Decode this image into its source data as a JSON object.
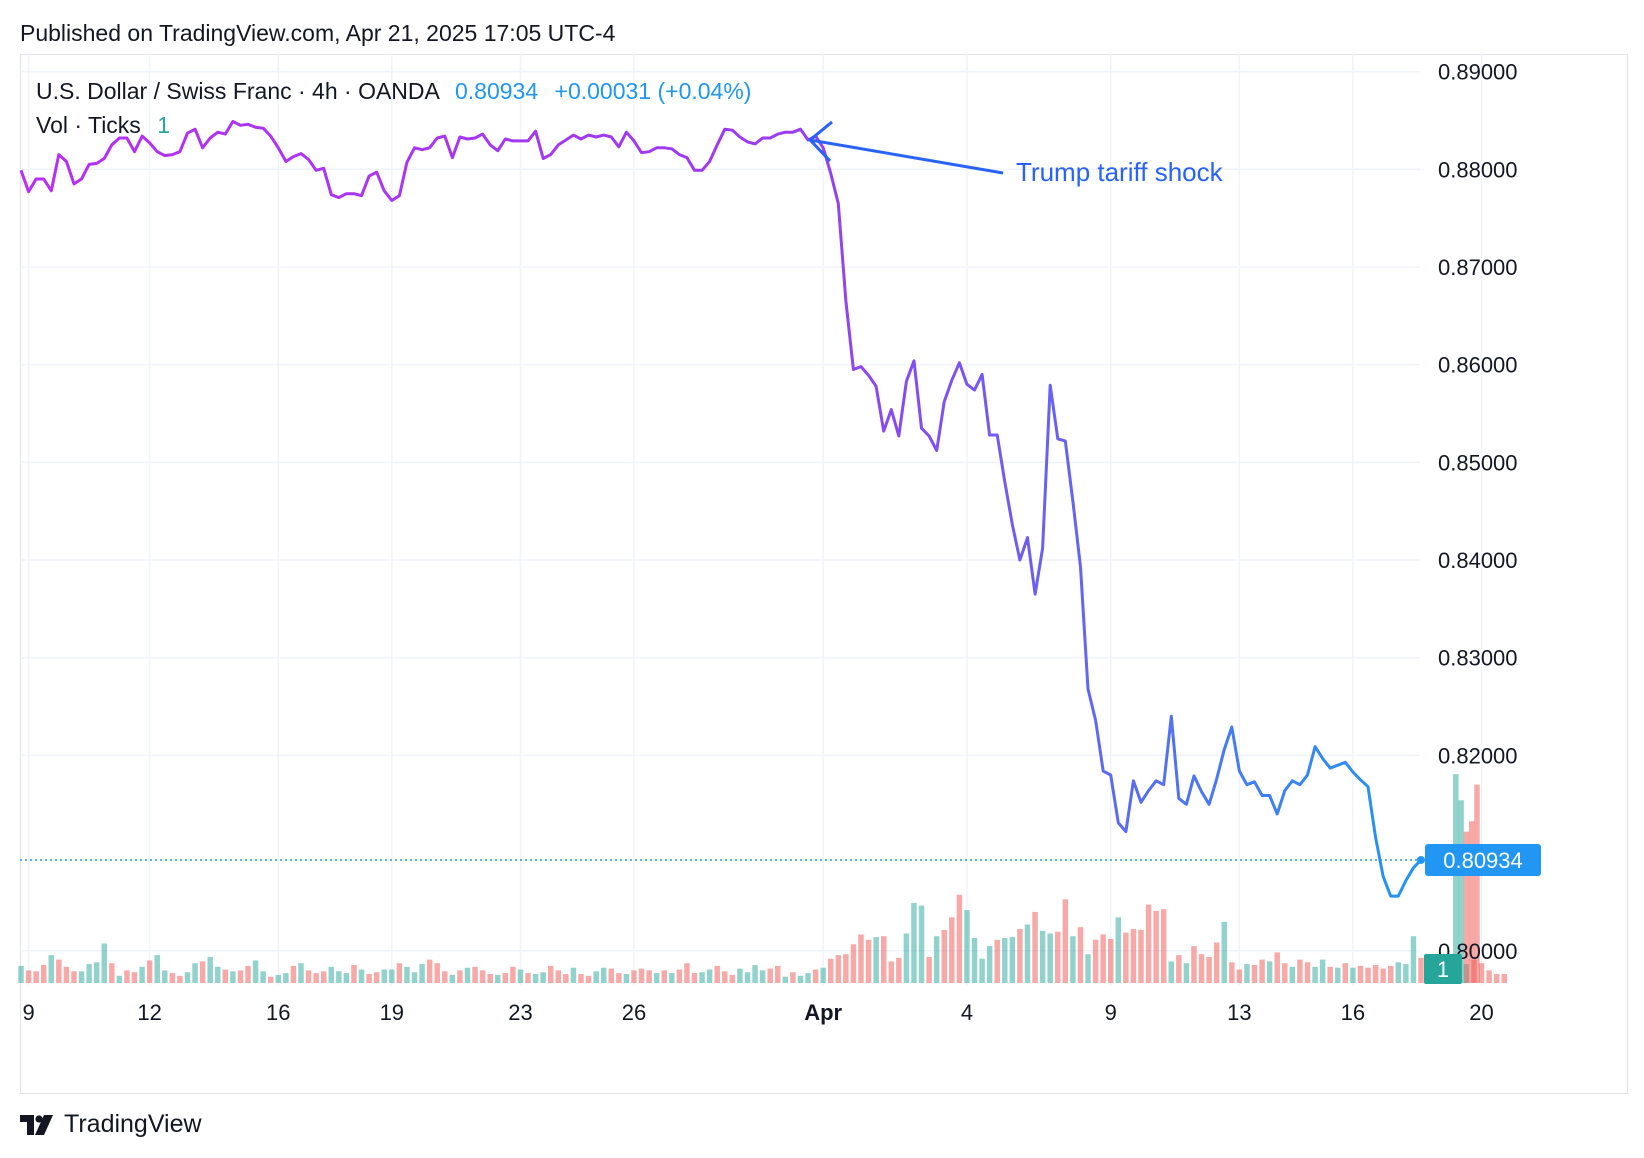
{
  "header": {
    "published": "Published on TradingView.com, Apr 21, 2025 17:05 UTC-4"
  },
  "legend": {
    "symbol": "U.S. Dollar / Swiss Franc · 4h · OANDA",
    "price": "0.80934",
    "change": "+0.00031 (+0.04%)",
    "volume_label": "Vol · Ticks",
    "volume_value": "1"
  },
  "footer": {
    "brand": "TradingView",
    "logo_icon": "tradingview-logo-icon"
  },
  "colors": {
    "line_start": "#b72ff5",
    "line_end": "#2196f3",
    "vol_up": "#26a69a",
    "vol_down": "#ef5350",
    "annotation": "#2962ff",
    "price_tag": "#2196f3"
  },
  "chart_data": {
    "type": "line",
    "title": "U.S. Dollar / Swiss Franc · 4h · OANDA",
    "ylim": [
      0.7965,
      0.8918
    ],
    "y_ticks": [
      "0.89000",
      "0.88000",
      "0.87000",
      "0.86000",
      "0.85000",
      "0.84000",
      "0.83000",
      "0.82000",
      "0.80000"
    ],
    "x_ticks": [
      {
        "label": "9",
        "idx": 1
      },
      {
        "label": "12",
        "idx": 17
      },
      {
        "label": "16",
        "idx": 34
      },
      {
        "label": "19",
        "idx": 49
      },
      {
        "label": "23",
        "idx": 66
      },
      {
        "label": "26",
        "idx": 81
      },
      {
        "label": "Apr",
        "idx": 106
      },
      {
        "label": "4",
        "idx": 125
      },
      {
        "label": "9",
        "idx": 144
      },
      {
        "label": "13",
        "idx": 161
      },
      {
        "label": "16",
        "idx": 176
      },
      {
        "label": "20",
        "idx": 193
      }
    ],
    "series": [
      {
        "values": [
          0.8799,
          0.8777,
          0.879,
          0.879,
          0.8778,
          0.8815,
          0.8808,
          0.8785,
          0.879,
          0.8805,
          0.8806,
          0.8811,
          0.8825,
          0.8832,
          0.8832,
          0.8818,
          0.8834,
          0.8827,
          0.8818,
          0.8814,
          0.8815,
          0.8818,
          0.8837,
          0.8841,
          0.8822,
          0.8832,
          0.8838,
          0.8836,
          0.8849,
          0.8845,
          0.8846,
          0.8843,
          0.8842,
          0.8834,
          0.8822,
          0.8808,
          0.8813,
          0.8816,
          0.881,
          0.8799,
          0.8801,
          0.8774,
          0.8771,
          0.8775,
          0.8775,
          0.8773,
          0.8793,
          0.8797,
          0.8778,
          0.8768,
          0.8773,
          0.8807,
          0.8822,
          0.882,
          0.8822,
          0.8832,
          0.8834,
          0.8812,
          0.8833,
          0.8831,
          0.8832,
          0.8836,
          0.8825,
          0.8819,
          0.8831,
          0.8829,
          0.8829,
          0.8829,
          0.8839,
          0.8811,
          0.8815,
          0.8825,
          0.883,
          0.8835,
          0.8831,
          0.8835,
          0.8833,
          0.8835,
          0.8833,
          0.8823,
          0.8838,
          0.8829,
          0.8817,
          0.8818,
          0.8822,
          0.8822,
          0.8821,
          0.8815,
          0.8812,
          0.8799,
          0.8799,
          0.8808,
          0.8825,
          0.8841,
          0.884,
          0.8833,
          0.8828,
          0.8826,
          0.8832,
          0.8832,
          0.8836,
          0.8838,
          0.8838,
          0.8841,
          0.883,
          0.8834,
          0.8822,
          0.8796,
          0.8765,
          0.8665,
          0.8595,
          0.8598,
          0.8589,
          0.8578,
          0.8532,
          0.8554,
          0.8527,
          0.8583,
          0.8604,
          0.8535,
          0.8527,
          0.8512,
          0.8562,
          0.8584,
          0.8602,
          0.858,
          0.8574,
          0.859,
          0.8528,
          0.8528,
          0.848,
          0.8436,
          0.84,
          0.8423,
          0.8365,
          0.8412,
          0.8579,
          0.8524,
          0.8522,
          0.846,
          0.8393,
          0.8268,
          0.8236,
          0.8184,
          0.818,
          0.8131,
          0.8122,
          0.8174,
          0.8152,
          0.8164,
          0.8174,
          0.817,
          0.824,
          0.8156,
          0.815,
          0.8179,
          0.8163,
          0.815,
          0.8176,
          0.8206,
          0.8229,
          0.8184,
          0.817,
          0.8173,
          0.8159,
          0.8159,
          0.814,
          0.8164,
          0.8174,
          0.817,
          0.818,
          0.8209,
          0.8197,
          0.8187,
          0.819,
          0.8193,
          0.8183,
          0.8175,
          0.8168,
          0.8116,
          0.8076,
          0.8056,
          0.8056,
          0.8072,
          0.8085,
          0.8093
        ]
      }
    ],
    "volume": {
      "heights": [
        0.19,
        0.14,
        0.13,
        0.2,
        0.31,
        0.26,
        0.18,
        0.13,
        0.13,
        0.21,
        0.23,
        0.44,
        0.22,
        0.08,
        0.14,
        0.12,
        0.18,
        0.25,
        0.31,
        0.14,
        0.11,
        0.08,
        0.12,
        0.22,
        0.24,
        0.29,
        0.18,
        0.15,
        0.13,
        0.14,
        0.19,
        0.25,
        0.13,
        0.07,
        0.09,
        0.11,
        0.19,
        0.22,
        0.14,
        0.11,
        0.13,
        0.18,
        0.13,
        0.11,
        0.2,
        0.15,
        0.1,
        0.12,
        0.15,
        0.15,
        0.22,
        0.18,
        0.12,
        0.21,
        0.26,
        0.22,
        0.13,
        0.09,
        0.14,
        0.17,
        0.18,
        0.14,
        0.1,
        0.09,
        0.11,
        0.18,
        0.15,
        0.11,
        0.1,
        0.12,
        0.19,
        0.14,
        0.1,
        0.17,
        0.1,
        0.08,
        0.13,
        0.17,
        0.16,
        0.11,
        0.1,
        0.14,
        0.16,
        0.14,
        0.11,
        0.14,
        0.11,
        0.15,
        0.22,
        0.11,
        0.12,
        0.15,
        0.19,
        0.13,
        0.09,
        0.16,
        0.12,
        0.2,
        0.14,
        0.16,
        0.19,
        0.07,
        0.12,
        0.08,
        0.11,
        0.15,
        0.17,
        0.27,
        0.31,
        0.32,
        0.43,
        0.54,
        0.48,
        0.51,
        0.52,
        0.24,
        0.28,
        0.55,
        0.89,
        0.86,
        0.29,
        0.52,
        0.59,
        0.73,
        0.98,
        0.81,
        0.5,
        0.27,
        0.41,
        0.48,
        0.5,
        0.51,
        0.6,
        0.65,
        0.79,
        0.58,
        0.55,
        0.57,
        0.93,
        0.52,
        0.62,
        0.32,
        0.48,
        0.54,
        0.49,
        0.73,
        0.56,
        0.6,
        0.59,
        0.87,
        0.8,
        0.82,
        0.24,
        0.31,
        0.22,
        0.41,
        0.32,
        0.29,
        0.45,
        0.68,
        0.23,
        0.15,
        0.21,
        0.2,
        0.26,
        0.24,
        0.34,
        0.22,
        0.18,
        0.26,
        0.23,
        0.18,
        0.26,
        0.18,
        0.17,
        0.22,
        0.17,
        0.19,
        0.17,
        0.2,
        0.16,
        0.19,
        0.23,
        0.21,
        0.52,
        0.28,
        0.24,
        0.11,
        0.08,
        0.25,
        0.22,
        0.21,
        0.26,
        0.22,
        0.14,
        0.1,
        0.1
      ],
      "up": [
        true,
        false,
        false,
        false,
        true,
        false,
        false,
        false,
        true,
        true,
        true,
        true,
        false,
        true,
        false,
        false,
        true,
        false,
        true,
        true,
        false,
        false,
        true,
        true,
        false,
        true,
        true,
        false,
        true,
        false,
        false,
        true,
        true,
        false,
        true,
        true,
        false,
        true,
        false,
        false,
        false,
        true,
        true,
        true,
        false,
        true,
        false,
        false,
        true,
        true,
        false,
        true,
        true,
        true,
        false,
        false,
        false,
        true,
        false,
        true,
        false,
        false,
        false,
        true,
        false,
        false,
        true,
        false,
        true,
        true,
        false,
        false,
        false,
        true,
        false,
        false,
        true,
        true,
        false,
        false,
        true,
        false,
        false,
        false,
        true,
        false,
        true,
        false,
        false,
        false,
        true,
        true,
        false,
        false,
        false,
        true,
        true,
        true,
        true,
        false,
        false,
        true,
        false,
        true,
        true,
        false,
        true,
        false,
        false,
        false,
        false,
        false,
        false,
        true,
        false,
        false,
        false,
        true,
        true,
        true,
        false,
        true,
        false,
        false,
        false,
        true,
        true,
        true,
        true,
        false,
        true,
        true,
        false,
        true,
        false,
        true,
        true,
        false,
        false,
        true,
        false,
        true,
        false,
        false,
        false,
        true,
        false,
        false,
        false,
        false,
        false,
        false,
        true,
        false,
        true,
        false,
        false,
        false,
        false,
        true,
        false,
        false,
        true,
        false,
        false,
        true,
        false,
        false,
        true,
        false,
        false,
        true,
        true,
        false,
        true,
        false,
        true,
        false,
        false,
        false,
        false,
        false,
        true,
        true,
        true,
        false,
        false,
        false,
        true,
        false,
        true,
        true
      ],
      "spikes": [
        {
          "pos": 189.6,
          "height": 8.0,
          "up": true
        },
        {
          "pos": 190.3,
          "height": 7.0,
          "up": true
        },
        {
          "pos": 191.0,
          "height": 5.8,
          "up": false
        },
        {
          "pos": 191.7,
          "height": 6.2,
          "up": false
        },
        {
          "pos": 192.4,
          "height": 7.6,
          "up": false
        }
      ]
    },
    "annotation": {
      "text": "Trump tariff shock",
      "target_idx": 104
    },
    "last_price_label": "0.80934",
    "volume_badge": "1"
  }
}
